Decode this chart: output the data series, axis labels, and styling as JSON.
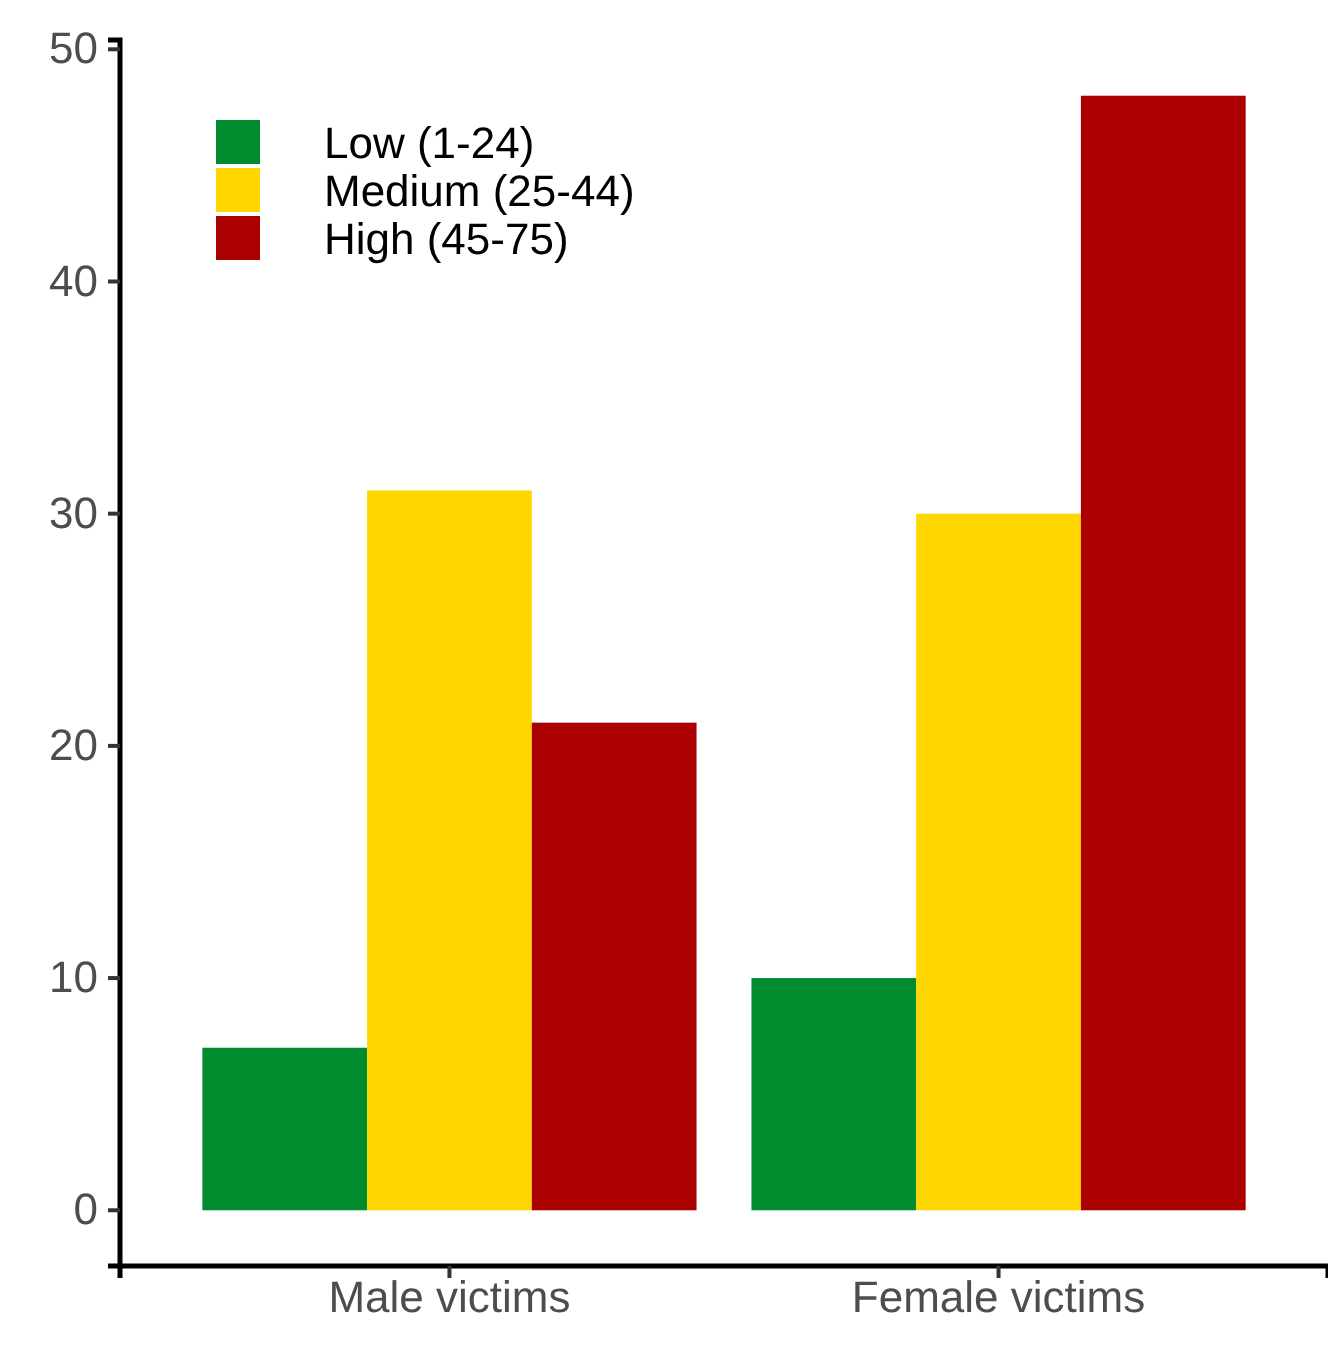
{
  "chart_data": {
    "type": "bar",
    "categories": [
      "Male victims",
      "Female victims"
    ],
    "series": [
      {
        "name": "Low (1-24)",
        "color": "#008b2f",
        "values": [
          7,
          10
        ]
      },
      {
        "name": "Medium (25-44)",
        "color": "#ffd700",
        "values": [
          31,
          30
        ]
      },
      {
        "name": "High (45-75)",
        "color": "#aa0000",
        "values": [
          21,
          48
        ]
      }
    ],
    "ylim": [
      -2.4,
      50.4
    ],
    "yticks": [
      0,
      10,
      20,
      30,
      40,
      50
    ],
    "grid": false,
    "legend": "top left"
  }
}
